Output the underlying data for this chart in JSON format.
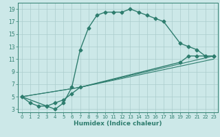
{
  "xlabel": "Humidex (Indice chaleur)",
  "ylabel": "",
  "xlim": [
    -0.5,
    23.5
  ],
  "ylim": [
    2.5,
    20
  ],
  "xticks": [
    0,
    1,
    2,
    3,
    4,
    5,
    6,
    7,
    8,
    9,
    10,
    11,
    12,
    13,
    14,
    15,
    16,
    17,
    18,
    19,
    20,
    21,
    22,
    23
  ],
  "yticks": [
    3,
    5,
    7,
    9,
    11,
    13,
    15,
    17,
    19
  ],
  "background_color": "#cce8e8",
  "grid_color": "#aacccc",
  "line_color": "#2e7d6e",
  "series": [
    {
      "x": [
        0,
        1,
        2,
        3,
        4,
        5,
        6,
        7,
        8,
        9,
        10,
        11,
        12,
        13,
        14,
        15,
        16,
        17,
        19,
        20,
        21,
        22,
        23
      ],
      "y": [
        5,
        4,
        3.5,
        3.5,
        3,
        4,
        6.5,
        12.5,
        16,
        18,
        18.5,
        18.5,
        18.5,
        19,
        18.5,
        18,
        17.5,
        17,
        13.5,
        13,
        12.5,
        11.5,
        11.5
      ],
      "marker": "D",
      "markersize": 2.5,
      "linewidth": 1.0,
      "linestyle": "-"
    },
    {
      "x": [
        0,
        3,
        4,
        5,
        6,
        7,
        19,
        20,
        21,
        22,
        23
      ],
      "y": [
        5,
        3.5,
        4,
        4.5,
        5.5,
        6.5,
        10.5,
        11.5,
        11.5,
        11.5,
        11.5
      ],
      "marker": "D",
      "markersize": 2.5,
      "linewidth": 1.0,
      "linestyle": "-"
    },
    {
      "x": [
        0,
        7,
        23
      ],
      "y": [
        5,
        6.5,
        11.5
      ],
      "marker": null,
      "markersize": 0,
      "linewidth": 0.8,
      "linestyle": "-"
    },
    {
      "x": [
        0,
        7,
        23
      ],
      "y": [
        5,
        6.5,
        11.0
      ],
      "marker": null,
      "markersize": 0,
      "linewidth": 0.8,
      "linestyle": "-"
    }
  ]
}
